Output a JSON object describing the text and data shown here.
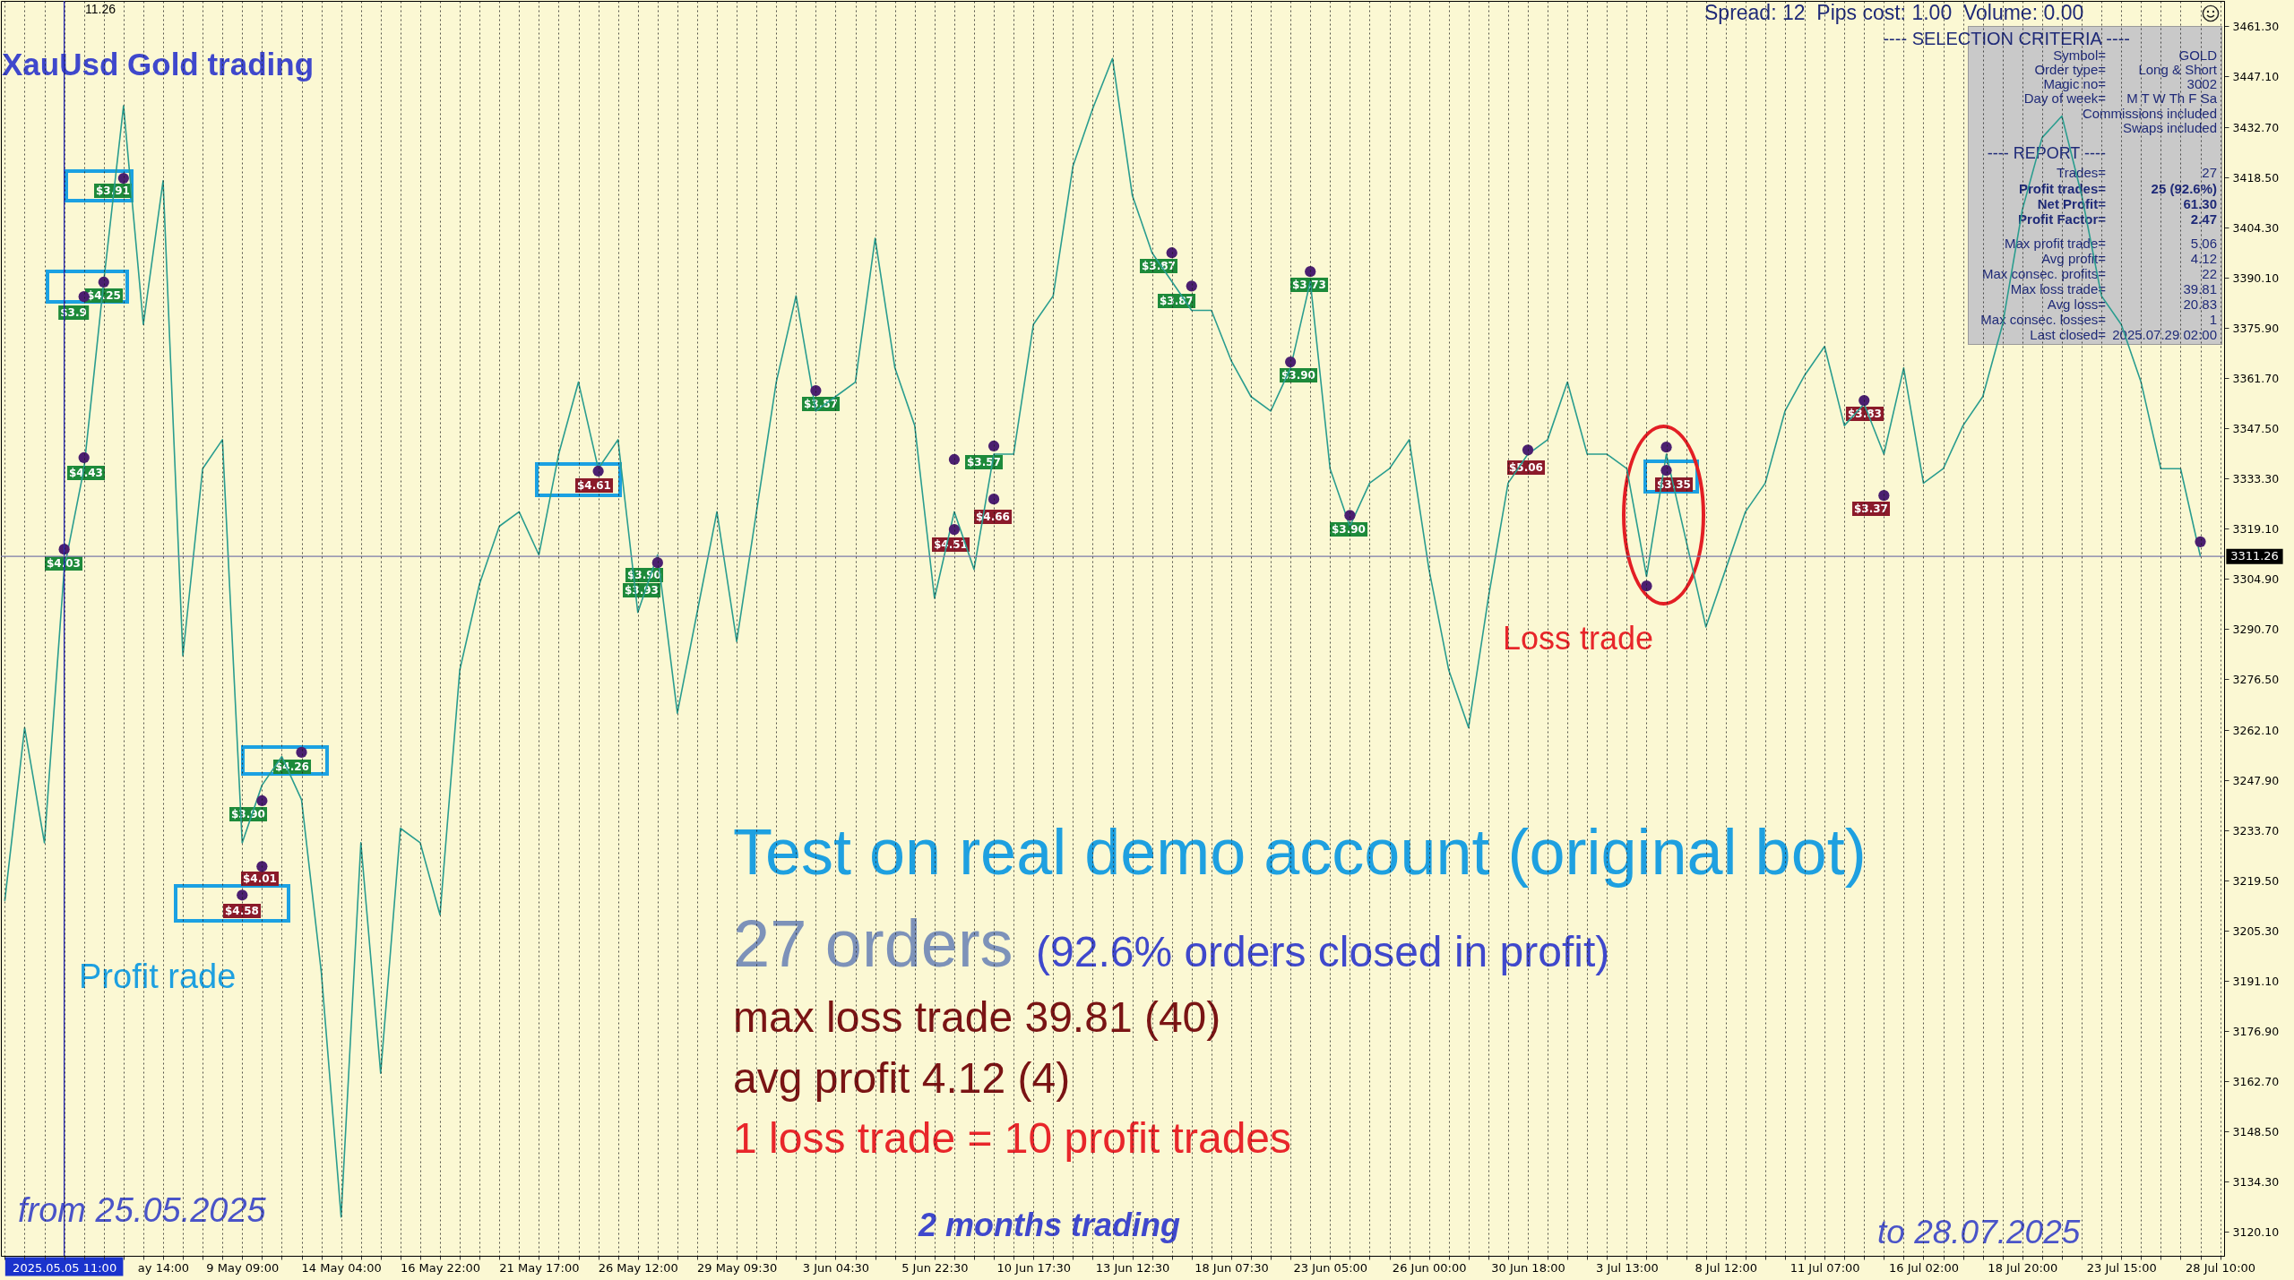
{
  "chart_data": {
    "type": "line",
    "title": "XauUsd Gold trading",
    "categories": [
      null,
      null,
      null,
      "2025.05.05 11:00",
      null,
      null,
      null,
      null,
      "ay 14:00",
      null,
      null,
      null,
      "9 May 09:00",
      null,
      null,
      null,
      null,
      "14 May 04:00",
      null,
      null,
      null,
      null,
      "16 May 22:00",
      null,
      null,
      null,
      null,
      "21 May 17:00",
      null,
      null,
      null,
      null,
      "26 May 12:00",
      null,
      null,
      null,
      null,
      "29 May 09:30",
      null,
      null,
      null,
      null,
      "3 Jun 04:30",
      null,
      null,
      null,
      null,
      "5 Jun 22:30",
      null,
      null,
      null,
      null,
      "10 Jun 17:30",
      null,
      null,
      null,
      null,
      "13 Jun 12:30",
      null,
      null,
      null,
      null,
      "18 Jun 07:30",
      null,
      null,
      null,
      null,
      "23 Jun 05:00",
      null,
      null,
      null,
      null,
      "26 Jun 00:00",
      null,
      null,
      null,
      null,
      "30 Jun 18:00",
      null,
      null,
      null,
      null,
      "3 Jul 13:00",
      null,
      null,
      null,
      null,
      "8 Jul 12:00",
      null,
      null,
      null,
      null,
      "11 Jul 07:00",
      null,
      null,
      null,
      null,
      "16 Jul 02:00",
      null,
      null,
      null,
      null,
      "18 Jul 20:00",
      null,
      null,
      null,
      null,
      "23 Jul 15:00",
      null,
      null,
      null,
      null,
      "28 Jul 10:00"
    ],
    "series": [
      {
        "color": "#2a9d8f",
        "values": [
          3213.9,
          3262.8,
          3230.2,
          3307.6,
          3336.1,
          3389.1,
          3438.8,
          3376.9,
          3417.6,
          3283.1,
          3336.1,
          3344.3,
          3230.2,
          3246.5,
          3254.6,
          3242.4,
          3193.5,
          3124.3,
          3230.2,
          3165.0,
          3234.3,
          3230.2,
          3209.8,
          3279.1,
          3303.5,
          3319.8,
          3323.9,
          3311.7,
          3340.2,
          3360.6,
          3336.1,
          3344.3,
          3295.4,
          3311.7,
          3266.9,
          3295.4,
          3323.9,
          3287.2,
          3323.9,
          3360.6,
          3385.0,
          3352.4,
          3356.5,
          3360.6,
          3401.3,
          3364.6,
          3348.3,
          3299.4,
          3323.9,
          3307.6,
          3340.2,
          3340.2,
          3376.9,
          3385.0,
          3421.7,
          3438.0,
          3452.2,
          3413.5,
          3397.2,
          3389.1,
          3380.9,
          3380.9,
          3366.7,
          3356.5,
          3352.4,
          3364.6,
          3389.1,
          3336.1,
          3319.8,
          3332.0,
          3336.1,
          3344.3,
          3307.6,
          3279.1,
          3262.8,
          3299.4,
          3332.0,
          3340.2,
          3344.3,
          3360.6,
          3340.2,
          3340.2,
          3336.1,
          3305.6,
          3340.2,
          3315.7,
          3291.3,
          3307.6,
          3323.9,
          3332.0,
          3352.4,
          3362.6,
          3370.7,
          3348.3,
          3354.4,
          3340.2,
          3364.6,
          3332.0,
          3336.1,
          3348.3,
          3356.5,
          3376.9,
          3409.4,
          3429.8,
          3435.9,
          3413.5,
          3385.0,
          3376.9,
          3360.6,
          3336.1,
          3336.1,
          3311.3,
          null
        ]
      },
      {
        "type": "scatter",
        "color": "#4b1f70",
        "marker": "circle",
        "values": [
          null,
          null,
          null,
          3313.3,
          3384.8,
          3388.9,
          3418.3,
          null,
          null,
          null,
          null,
          null,
          3215.4,
          3242.1,
          null,
          3255.8,
          null,
          null,
          null,
          null,
          null,
          null,
          null,
          null,
          null,
          null,
          null,
          null,
          null,
          null,
          3335.4,
          null,
          null,
          3309.5,
          null,
          null,
          null,
          null,
          null,
          null,
          null,
          3358.2,
          null,
          null,
          null,
          null,
          null,
          null,
          3318.9,
          null,
          3342.5,
          null,
          null,
          null,
          null,
          null,
          null,
          null,
          null,
          3397.2,
          3387.8,
          null,
          null,
          null,
          null,
          3366.3,
          3391.9,
          null,
          3322.9,
          null,
          null,
          null,
          null,
          null,
          null,
          null,
          null,
          3341.4,
          null,
          null,
          null,
          null,
          null,
          3302.9,
          3342.2,
          null,
          null,
          null,
          null,
          null,
          null,
          null,
          null,
          null,
          3355.4,
          3328.5,
          null,
          null,
          null,
          null,
          null,
          null,
          null,
          null,
          null,
          null,
          null,
          null,
          null,
          null,
          null,
          3315.4,
          null
        ]
      },
      {
        "type": "scatter",
        "color": "#4b1f70",
        "marker": "circle",
        "values": [
          null,
          null,
          null,
          null,
          3339.2,
          null,
          null,
          null,
          null,
          null,
          null,
          null,
          null,
          3223.5,
          null,
          null,
          null,
          null,
          null,
          null,
          null,
          null,
          null,
          null,
          null,
          null,
          null,
          null,
          null,
          null,
          null,
          null,
          null,
          null,
          null,
          null,
          null,
          null,
          null,
          null,
          null,
          null,
          null,
          null,
          null,
          null,
          null,
          null,
          3338.7,
          null,
          3327.5,
          null,
          null,
          null,
          null,
          null,
          null,
          null,
          null,
          null,
          null,
          null,
          null,
          null,
          null,
          null,
          null,
          null,
          null,
          null,
          null,
          null,
          null,
          null,
          null,
          null,
          null,
          null,
          null,
          null,
          null,
          null,
          null,
          null,
          3335.6,
          null,
          null,
          null,
          null,
          null,
          null,
          null,
          null,
          null,
          null,
          null,
          null,
          null,
          null,
          null,
          null,
          null,
          null,
          null,
          null,
          null,
          null,
          null,
          null,
          null,
          null,
          null,
          null
        ]
      }
    ],
    "ylim": [
      3113.3,
      3468.5
    ],
    "yticks": [
      {
        "value": 3461.3,
        "label": "3461.30"
      },
      {
        "value": 3447.1,
        "label": "3447.10"
      },
      {
        "value": 3432.7,
        "label": "3432.70"
      },
      {
        "value": 3418.5,
        "label": "3418.50"
      },
      {
        "value": 3404.3,
        "label": "3404.30"
      },
      {
        "value": 3390.1,
        "label": "3390.10"
      },
      {
        "value": 3375.9,
        "label": "3375.90"
      },
      {
        "value": 3361.7,
        "label": "3361.70"
      },
      {
        "value": 3347.5,
        "label": "3347.50"
      },
      {
        "value": 3333.3,
        "label": "3333.30"
      },
      {
        "value": 3319.1,
        "label": "3319.10"
      },
      {
        "value": 3304.9,
        "label": "3304.90"
      },
      {
        "value": 3290.7,
        "label": "3290.70"
      },
      {
        "value": 3276.5,
        "label": "3276.50"
      },
      {
        "value": 3262.1,
        "label": "3262.10"
      },
      {
        "value": 3247.9,
        "label": "3247.90"
      },
      {
        "value": 3233.7,
        "label": "3233.70"
      },
      {
        "value": 3219.5,
        "label": "3219.50"
      },
      {
        "value": 3205.3,
        "label": "3205.30"
      },
      {
        "value": 3191.1,
        "label": "3191.10"
      },
      {
        "value": 3176.9,
        "label": "3176.90"
      },
      {
        "value": 3162.7,
        "label": "3162.70"
      },
      {
        "value": 3148.5,
        "label": "3148.50"
      },
      {
        "value": 3134.3,
        "label": "3134.30"
      },
      {
        "value": 3120.1,
        "label": "3120.10"
      }
    ],
    "grid": "x",
    "ref_lines": [
      {
        "axis": "x",
        "value": "2025.05.05 11:00",
        "color": "#2b2bb8"
      },
      {
        "axis": "y",
        "value": 3311.26,
        "label": "3311.26",
        "color": "#7b7ba8"
      }
    ],
    "annotations": [
      "11.26",
      "Spread: 12  Pips cost: 1.00  Volume: 0.00",
      "---- SELECTION CRITERIA ----",
      "Symbol= GOLD",
      "Order type= Long & Short",
      "Magic no= 3002",
      "Day of week= M T W Th F Sa",
      "Commissions included",
      "Swaps included",
      "---- REPORT ----",
      "Trades= 27",
      "Profit trades= 25 (92.6%)",
      "Net Profit= 61.30",
      "Profit Factor= 2.47",
      "Max profit trade= 5.06",
      "Avg profit= 4.12",
      "Max consec. profits= 22",
      "Max loss trade= 39.81",
      "Avg loss= 20.83",
      "Max consec. losses= 1",
      "Last closed= 2025.07.29 02:00",
      "Test on real demo account (original bot)",
      "27 orders",
      "(92.6% orders closed in profit)",
      "max loss trade 39.81 (40)",
      "avg profit 4.12 (4)",
      "1 loss trade = 10 profit trades",
      "from 25.05.2025",
      "2 months trading",
      "to 28.07.2025",
      "Profit rade",
      "Loss trade",
      "$3.91",
      "$4.25",
      "$3.9",
      "$4.43",
      "$4.03",
      "$4.26",
      "$3.90",
      "$4.01",
      "$4.58",
      "$4.61",
      "$3.90",
      "$3.93",
      "$3.87",
      "$3.57",
      "$4.66",
      "$4.51",
      "$3.87",
      "$3.87",
      "$3.73",
      "$3.90",
      "$3.90",
      "$5.06",
      "$3.35",
      "$3.83",
      "$3.37"
    ]
  }
}
